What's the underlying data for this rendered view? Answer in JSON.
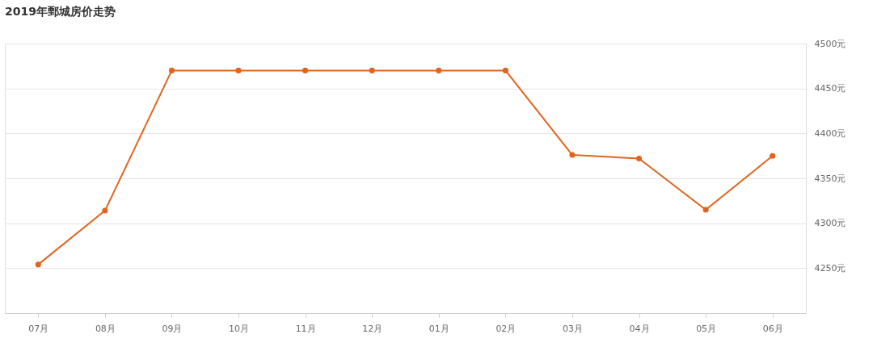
{
  "chart_data": {
    "type": "line",
    "title": "2019年鄄城房价走势",
    "categories": [
      "07月",
      "08月",
      "09月",
      "10月",
      "11月",
      "12月",
      "01月",
      "02月",
      "03月",
      "04月",
      "05月",
      "06月"
    ],
    "series": [
      {
        "color": "#e0641e",
        "values": [
          4254,
          4314,
          4470,
          4470,
          4470,
          4470,
          4470,
          4470,
          4376,
          4372,
          4315,
          4375
        ]
      }
    ],
    "ylim": [
      4200,
      4500
    ],
    "yticks": [
      {
        "value": 4250,
        "label": "4250元"
      },
      {
        "value": 4300,
        "label": "4300元"
      },
      {
        "value": 4350,
        "label": "4350元"
      },
      {
        "value": 4400,
        "label": "4400元"
      },
      {
        "value": 4450,
        "label": "4450元"
      },
      {
        "value": 4500,
        "label": "4500元"
      }
    ],
    "grid": "y",
    "marker": "circle",
    "line_style": "solid"
  }
}
